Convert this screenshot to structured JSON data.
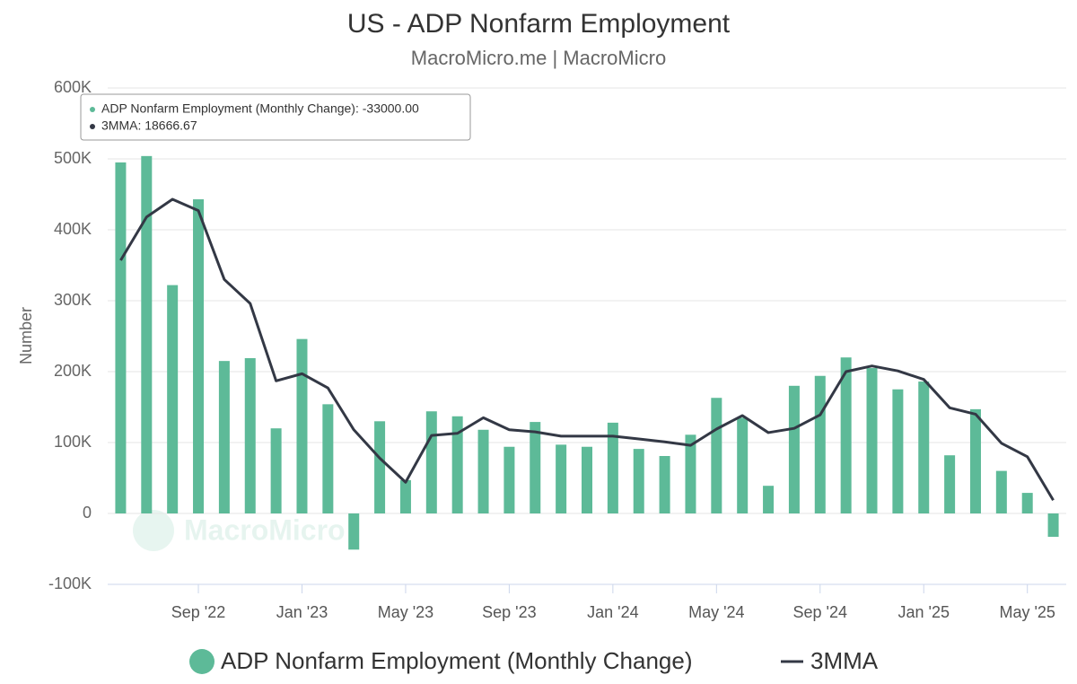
{
  "chart_data": {
    "type": "bar_line",
    "title": "US - ADP Nonfarm Employment",
    "subtitle": "MacroMicro.me | MacroMicro",
    "watermark": "MacroMicro",
    "y_label": "Number",
    "categories": [
      null,
      null,
      null,
      "Sep '22",
      null,
      null,
      null,
      "Jan '23",
      null,
      null,
      null,
      "May '23",
      null,
      null,
      null,
      "Sep '23",
      null,
      null,
      null,
      "Jan '24",
      null,
      null,
      null,
      "May '24",
      null,
      null,
      null,
      "Sep '24",
      null,
      null,
      null,
      "Jan '25",
      null,
      null,
      null,
      "May '25",
      null
    ],
    "series": [
      {
        "name": "ADP Nonfarm Employment (Monthly Change)",
        "type": "bar",
        "color": "#5dba98",
        "values": [
          495000,
          504000,
          322000,
          443000,
          215000,
          219000,
          120000,
          246000,
          154000,
          -51000,
          130000,
          47000,
          144000,
          137000,
          118000,
          94000,
          129000,
          97000,
          94000,
          128000,
          91000,
          81000,
          111000,
          163000,
          135000,
          39000,
          180000,
          194000,
          220000,
          205000,
          175000,
          186000,
          82000,
          147000,
          60000,
          29000,
          -33000
        ]
      },
      {
        "name": "3MMA",
        "type": "line",
        "color": "#333845",
        "values": [
          357000,
          418000,
          443000,
          427000,
          330000,
          296000,
          187000,
          197000,
          177000,
          118000,
          78000,
          44000,
          110000,
          113000,
          135000,
          118000,
          115000,
          109000,
          109000,
          109000,
          105000,
          101000,
          96000,
          119000,
          138000,
          114000,
          120000,
          139000,
          200000,
          208000,
          201000,
          189000,
          149000,
          140000,
          99000,
          80000,
          18666.67
        ]
      }
    ],
    "ylim": [
      -100000,
      600000
    ],
    "yticks": [
      {
        "value": -100000,
        "label": "-100K"
      },
      0,
      {
        "value": 100000,
        "label": "100K"
      },
      {
        "value": 200000,
        "label": "200K"
      },
      {
        "value": 300000,
        "label": "300K"
      },
      {
        "value": 400000,
        "label": "400K"
      },
      {
        "value": 500000,
        "label": "500K"
      },
      {
        "value": 600000,
        "label": "600K"
      }
    ],
    "grid": true,
    "legend": "bottom",
    "tooltip": [
      "ADP Nonfarm Employment (Monthly Change): -33000.00",
      "3MMA: 18666.67"
    ]
  }
}
